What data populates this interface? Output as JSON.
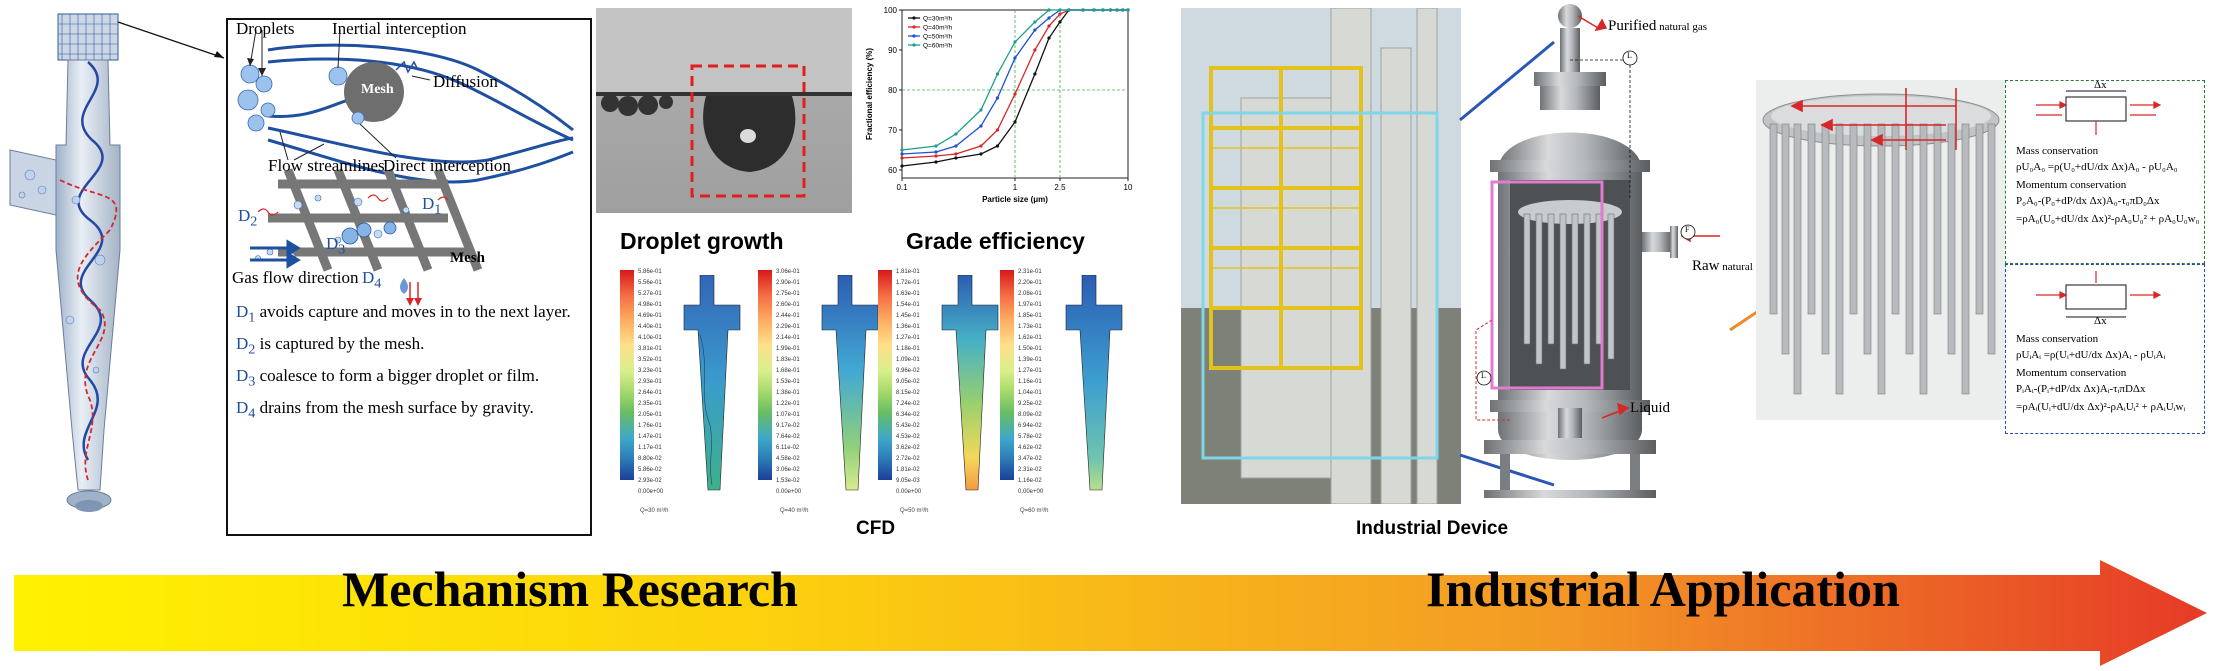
{
  "mechanism": {
    "labels": {
      "droplets": "Droplets",
      "inertial": "Inertial interception",
      "diffusion": "Diffusion",
      "mesh": "Mesh",
      "streamlines": "Flow streamlines",
      "direct": "Direct interception",
      "mesh2": "Mesh",
      "gas_flow": "Gas flow direction",
      "d1": "D",
      "d2": "D",
      "d3": "D",
      "d4": "D"
    },
    "notes": [
      {
        "sym": "D",
        "sub": "1",
        "text": " avoids capture and moves in to the next layer."
      },
      {
        "sym": "D",
        "sub": "2",
        "text": " is captured by the mesh."
      },
      {
        "sym": "D",
        "sub": "3",
        "text": " coalesce to form a bigger droplet or film."
      },
      {
        "sym": "D",
        "sub": "4",
        "text": " drains from the mesh surface by gravity."
      }
    ]
  },
  "efficiency_chart": {
    "ylabel": "Fractional efficiency (%)",
    "xlabel": "Particle size (μm)",
    "yticks": [
      "60",
      "70",
      "80",
      "90",
      "100"
    ],
    "xticks": [
      "0.1",
      "1",
      "2.5",
      "10"
    ],
    "legend": [
      "Q=30m³/h",
      "Q=40m³/h",
      "Q=50m³/h",
      "Q=60m³/h"
    ],
    "colors": [
      "#111111",
      "#d62728",
      "#1f4fd6",
      "#1a9e8f"
    ]
  },
  "chart_data": {
    "type": "line",
    "xlabel": "Particle size (μm)",
    "ylabel": "Fractional efficiency (%)",
    "ylim": [
      58,
      100
    ],
    "xlim": [
      0.1,
      10
    ],
    "xscale": "log",
    "series": [
      {
        "name": "Q=30m³/h",
        "x": [
          0.1,
          0.2,
          0.3,
          0.5,
          0.7,
          1,
          1.5,
          2,
          2.5,
          3,
          4,
          5,
          6,
          7,
          8,
          9,
          10
        ],
        "y": [
          61,
          62,
          63,
          64,
          66,
          72,
          84,
          93,
          97,
          100,
          100,
          100,
          100,
          100,
          100,
          100,
          100
        ]
      },
      {
        "name": "Q=40m³/h",
        "x": [
          0.1,
          0.2,
          0.3,
          0.5,
          0.7,
          1,
          1.5,
          2,
          2.5,
          3,
          4,
          5,
          6,
          7,
          8,
          9,
          10
        ],
        "y": [
          63,
          63.5,
          64,
          66,
          70,
          79,
          90,
          96,
          99,
          100,
          100,
          100,
          100,
          100,
          100,
          100,
          100
        ]
      },
      {
        "name": "Q=50m³/h",
        "x": [
          0.1,
          0.2,
          0.3,
          0.5,
          0.7,
          1,
          1.5,
          2,
          2.5,
          3,
          4,
          5,
          6,
          7,
          8,
          9,
          10
        ],
        "y": [
          64,
          64.5,
          66,
          71,
          78,
          88,
          95,
          98,
          100,
          100,
          100,
          100,
          100,
          100,
          100,
          100,
          100
        ]
      },
      {
        "name": "Q=60m³/h",
        "x": [
          0.1,
          0.2,
          0.3,
          0.5,
          0.7,
          1,
          1.5,
          2,
          2.5,
          3,
          4,
          5,
          6,
          7,
          8,
          9,
          10
        ],
        "y": [
          65,
          66,
          69,
          75,
          84,
          92,
          97,
          100,
          100,
          100,
          100,
          100,
          100,
          100,
          100,
          100,
          100
        ]
      }
    ]
  },
  "cfd": {
    "title_left": "Droplet growth",
    "title_right": "Grade efficiency",
    "caption": "CFD",
    "bars": [
      [
        "5.86e-01",
        "5.56e-01",
        "5.27e-01",
        "4.98e-01",
        "4.69e-01",
        "4.40e-01",
        "4.10e-01",
        "3.81e-01",
        "3.52e-01",
        "3.23e-01",
        "2.93e-01",
        "2.64e-01",
        "2.35e-01",
        "2.05e-01",
        "1.76e-01",
        "1.47e-01",
        "1.17e-01",
        "8.80e-02",
        "5.86e-02",
        "2.93e-02",
        "0.00e+00"
      ],
      [
        "3.06e-01",
        "2.90e-01",
        "2.75e-01",
        "2.60e-01",
        "2.44e-01",
        "2.29e-01",
        "2.14e-01",
        "1.99e-01",
        "1.83e-01",
        "1.68e-01",
        "1.53e-01",
        "1.38e-01",
        "1.22e-01",
        "1.07e-01",
        "9.17e-02",
        "7.64e-02",
        "6.11e-02",
        "4.58e-02",
        "3.06e-02",
        "1.53e-02",
        "0.00e+00"
      ],
      [
        "1.81e-01",
        "1.72e-01",
        "1.63e-01",
        "1.54e-01",
        "1.45e-01",
        "1.36e-01",
        "1.27e-01",
        "1.18e-01",
        "1.09e-01",
        "9.96e-02",
        "9.05e-02",
        "8.15e-02",
        "7.24e-02",
        "6.34e-02",
        "5.43e-02",
        "4.53e-02",
        "3.62e-02",
        "2.72e-02",
        "1.81e-02",
        "9.05e-03",
        "0.00e+00"
      ],
      [
        "2.31e-01",
        "2.20e-01",
        "2.08e-01",
        "1.97e-01",
        "1.85e-01",
        "1.73e-01",
        "1.62e-01",
        "1.50e-01",
        "1.39e-01",
        "1.27e-01",
        "1.16e-01",
        "1.04e-01",
        "9.25e-02",
        "8.09e-02",
        "6.94e-02",
        "5.78e-02",
        "4.62e-02",
        "3.47e-02",
        "2.31e-02",
        "1.16e-02",
        "0.00e+00"
      ]
    ],
    "footers": [
      "Q=30 m³/h",
      "Q=40 m³/h",
      "Q=50 m³/h",
      "Q=60 m³/h"
    ]
  },
  "industrial": {
    "caption": "Industrial Device",
    "purified": "Purified",
    "purified_sub": " natural gas",
    "raw": "Raw",
    "raw_sub": " natural gas",
    "liquid": "Liquid",
    "marks": [
      "L",
      "F",
      "L"
    ]
  },
  "formulas": {
    "top": {
      "dx": "Δx",
      "mass": "Mass conservation",
      "mass_eq": "ρU₀A₀ =ρ(U₀+dU/dx Δx)A₀ - ρU₀A₀",
      "mom": "Momentum conservation",
      "mom_eq1": "P₀A₀-(P₀+dP/dx Δx)A₀-τ₀πD₀Δx",
      "mom_eq2": "=ρA₀(U₀+dU/dx Δx)²-ρA₀U₀² + ρA₀U₀w₀"
    },
    "bottom": {
      "dx": "Δx",
      "mass": "Mass conservation",
      "mass_eq": "ρUᵢAᵢ =ρ(Uᵢ+dU/dx Δx)Aᵢ - ρUᵢAᵢ",
      "mom": "Momentum conservation",
      "mom_eq1": "PᵢAᵢ-(Pᵢ+dP/dx Δx)Aᵢ-τᵢπDΔx",
      "mom_eq2": "=ρAᵢ(Uᵢ+dU/dx Δx)²-ρAᵢUᵢ² + ρAᵢUᵢwᵢ"
    }
  },
  "banner": {
    "left": "Mechanism Research",
    "right": "Industrial Application"
  }
}
